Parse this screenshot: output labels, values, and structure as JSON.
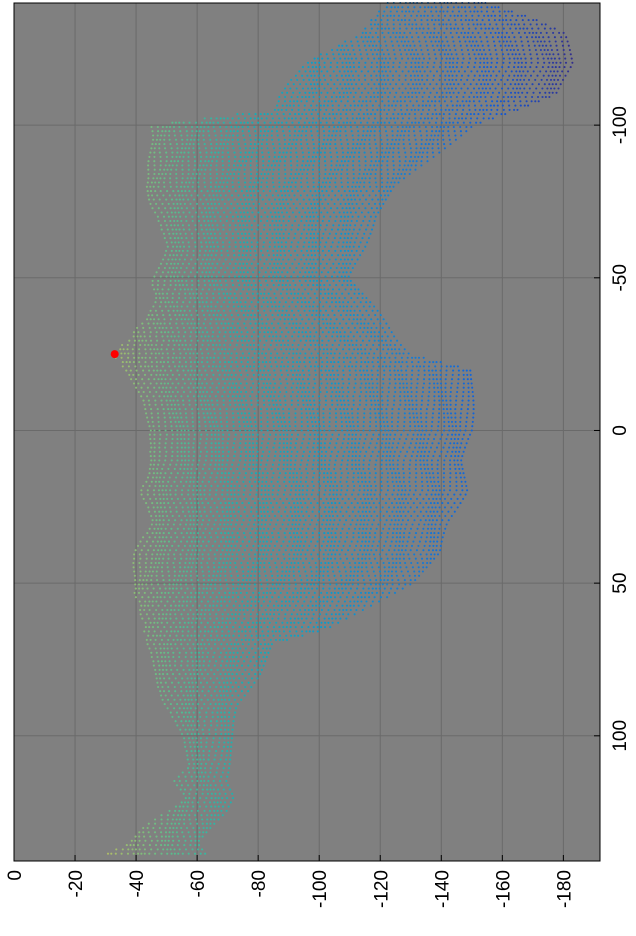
{
  "chart_data": {
    "type": "scatter",
    "title": "",
    "xlabel": "",
    "ylabel": "",
    "orientation": "rotated 90 degrees clockwise: x axis runs top-to-bottom along the right side, y axis runs left-to-right along the bottom",
    "xlim": [
      -140,
      141
    ],
    "ylim": [
      -192,
      0
    ],
    "x_ticks": [
      -100,
      -50,
      0,
      50,
      100
    ],
    "x_tick_labels": [
      "-100",
      "-50",
      "0",
      "50",
      "100"
    ],
    "y_ticks": [
      0,
      -20,
      -40,
      -60,
      -80,
      -100,
      -120,
      -140,
      -160,
      -180
    ],
    "y_tick_labels": [
      "0",
      "-20",
      "-40",
      "-60",
      "-80",
      "-100",
      "-120",
      "-140",
      "-160",
      "-180"
    ],
    "grid": true,
    "background_color": "#808080",
    "grid_color": "#6a6a6a",
    "colormap": "parula",
    "highlight_point": {
      "x": -25,
      "y": -33,
      "color": "#ff0000"
    },
    "envelope": {
      "x": [
        -140,
        -135,
        -130,
        -120,
        -110,
        -105,
        -100,
        -90,
        -80,
        -70,
        -60,
        -50,
        -40,
        -30,
        -25,
        -20,
        -10,
        0,
        10,
        20,
        30,
        40,
        50,
        60,
        65,
        70,
        80,
        90,
        100,
        110,
        115,
        120,
        125,
        130,
        135,
        140
      ],
      "upper": [
        -123,
        -118,
        -114,
        -95,
        -88,
        -85,
        -45,
        -45,
        -43,
        -47,
        -50,
        -46,
        -46,
        -38,
        -33,
        -37,
        -43,
        -45,
        -45,
        -42,
        -45,
        -40,
        -39,
        -42,
        -43,
        -44,
        -46,
        -50,
        -55,
        -57,
        -53,
        -57,
        -50,
        -43,
        -38,
        -28
      ],
      "lower": [
        -155,
        -170,
        -180,
        -183,
        -178,
        -165,
        -150,
        -138,
        -125,
        -118,
        -115,
        -110,
        -118,
        -125,
        -130,
        -150,
        -150,
        -150,
        -147,
        -148,
        -142,
        -140,
        -130,
        -112,
        -103,
        -85,
        -80,
        -73,
        -72,
        -70,
        -69,
        -72,
        -70,
        -65,
        -60,
        -63
      ]
    }
  }
}
